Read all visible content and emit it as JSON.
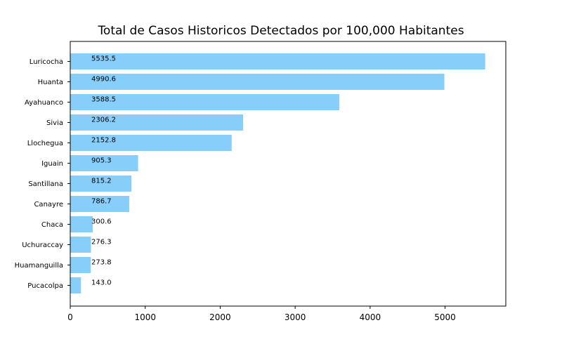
{
  "chart_data": {
    "type": "bar",
    "orientation": "horizontal",
    "title": "Total de Casos Historicos Detectados por 100,000 Habitantes",
    "xlabel": "",
    "ylabel": "",
    "categories": [
      "Luricocha",
      "Huanta",
      "Ayahuanco",
      "Sivia",
      "Llochegua",
      "Iguain",
      "Santillana",
      "Canayre",
      "Chaca",
      "Uchuraccay",
      "Huamanguilla",
      "Pucacolpa"
    ],
    "values": [
      5535.5,
      4990.6,
      3588.5,
      2306.2,
      2152.8,
      905.3,
      815.2,
      786.7,
      300.6,
      276.3,
      273.8,
      143.0
    ],
    "value_labels": [
      "5535.5",
      "4990.6",
      "3588.5",
      "2306.2",
      "2152.8",
      "905.3",
      "815.2",
      "786.7",
      "300.6",
      "276.3",
      "273.8",
      "143.0"
    ],
    "xlim": [
      0,
      5810
    ],
    "xticks": [
      0,
      1000,
      2000,
      3000,
      4000,
      5000
    ],
    "xtick_labels": [
      "0",
      "1000",
      "2000",
      "3000",
      "4000",
      "5000"
    ],
    "bar_color": "#87cefa",
    "grid": false,
    "legend": "none"
  }
}
